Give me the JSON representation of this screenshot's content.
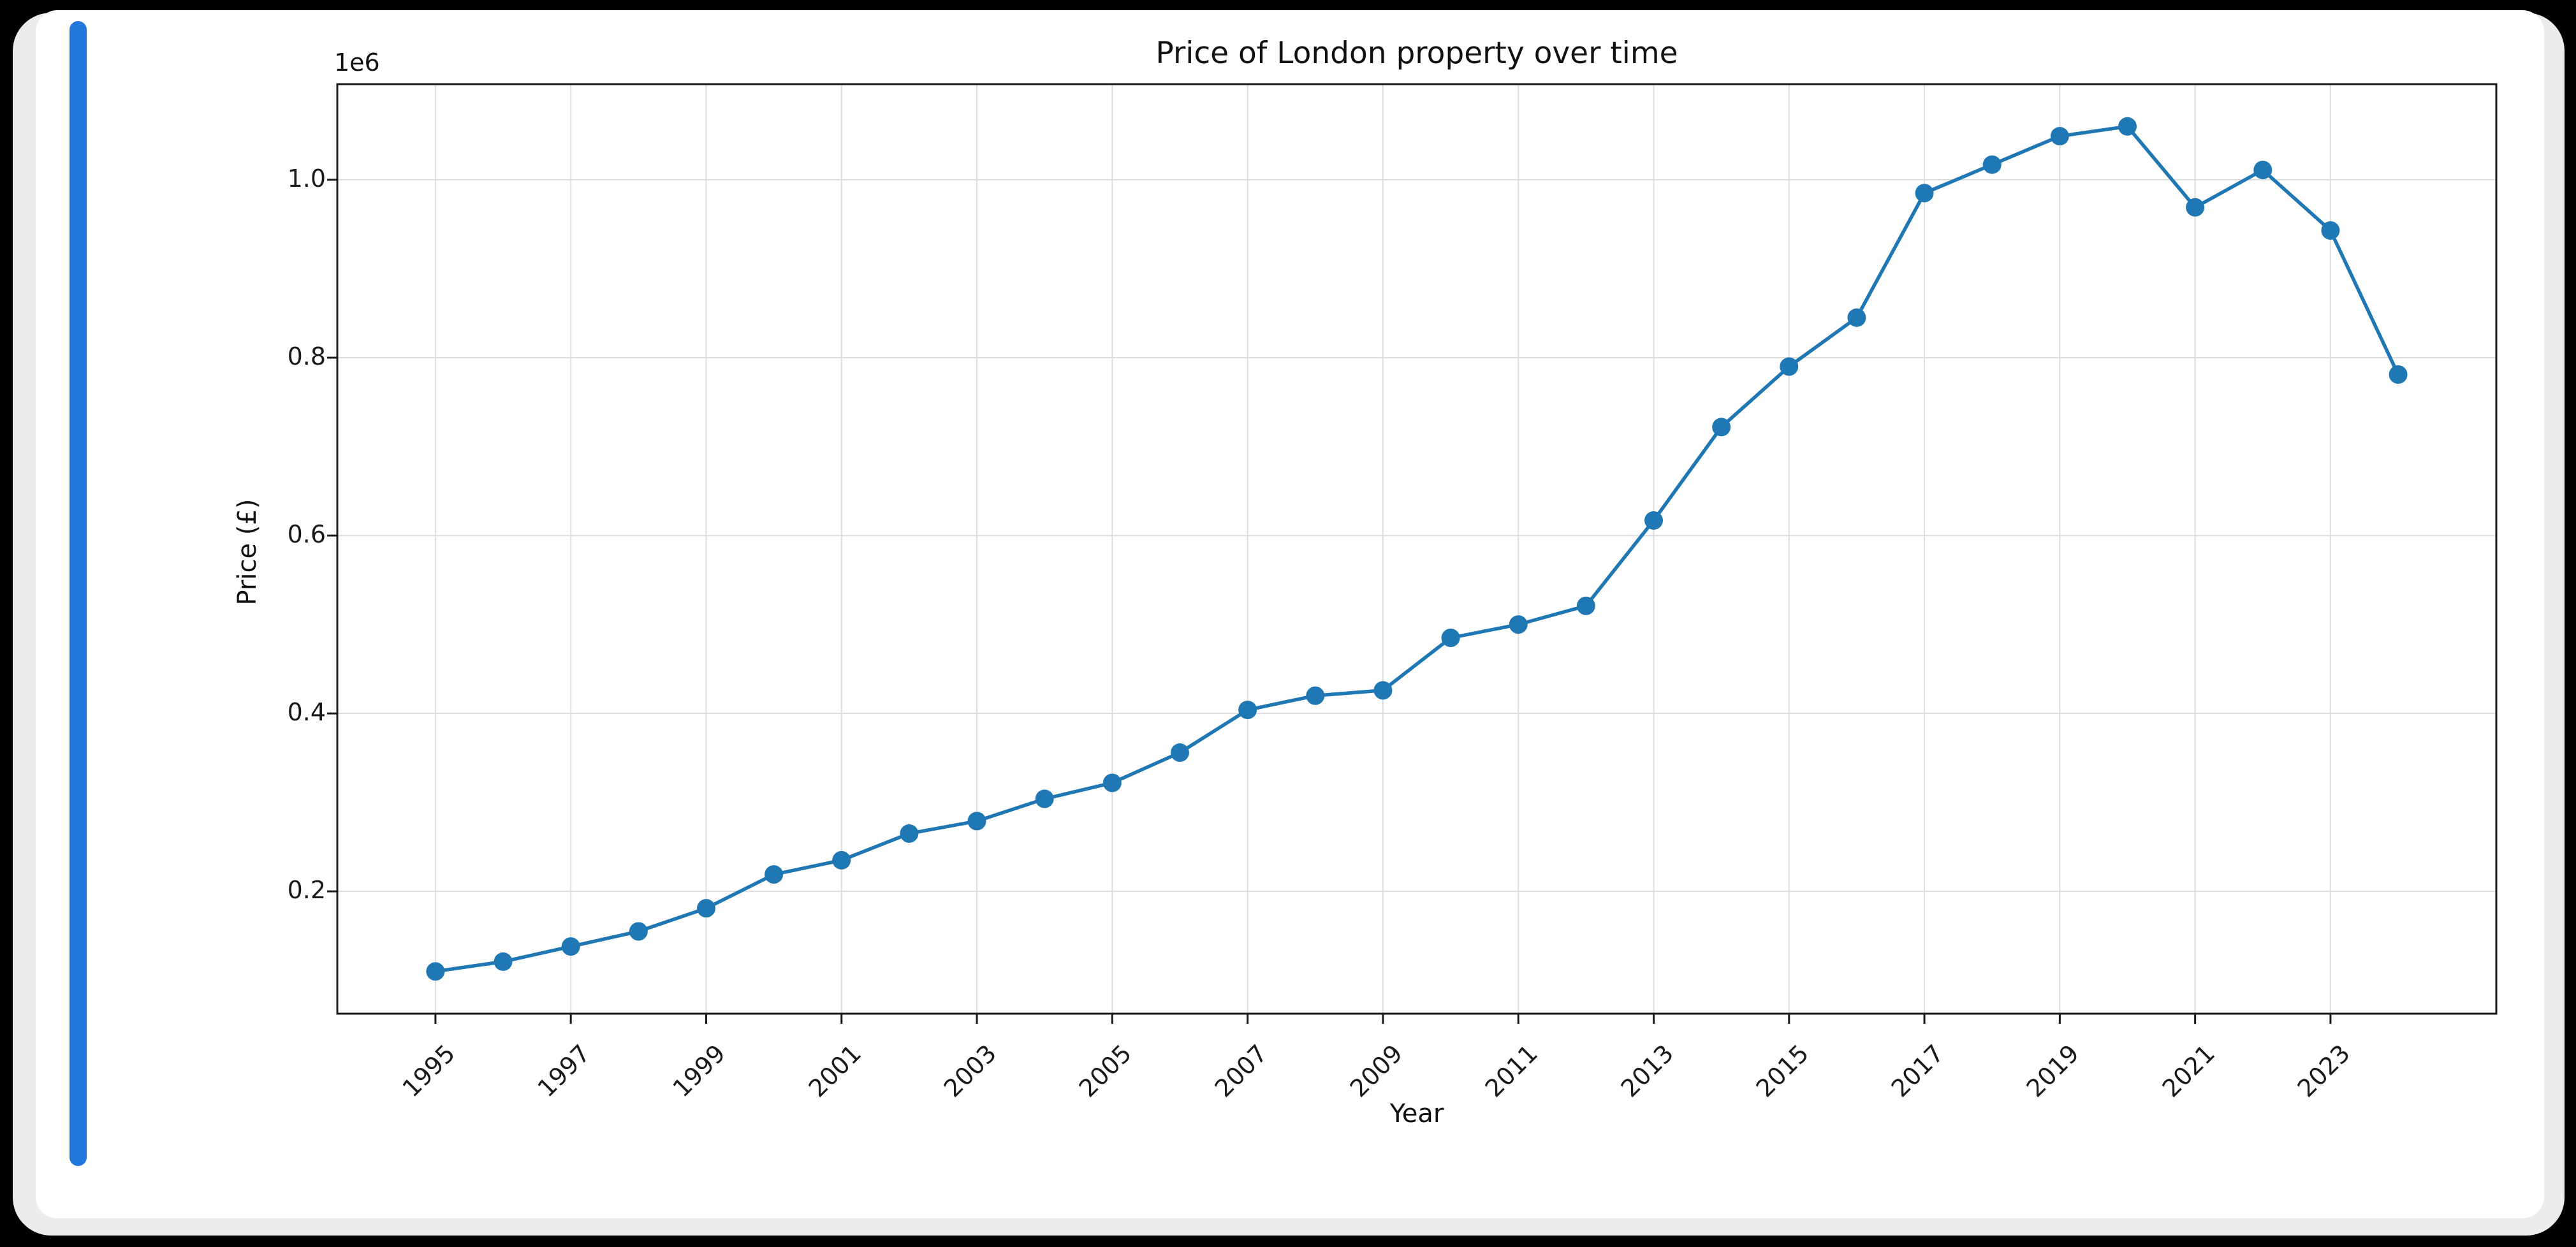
{
  "frame": {
    "background_color": "#000000",
    "sheet_color": "#ececec",
    "card_color": "#ffffff",
    "accent_bar_color": "#2277dd"
  },
  "chart_data": {
    "type": "line",
    "title": "Price of London property over time",
    "xlabel": "Year",
    "ylabel": "Price (£)",
    "y_offset_label": "1e6",
    "x": [
      1995,
      1996,
      1997,
      1998,
      1999,
      2000,
      2001,
      2002,
      2003,
      2004,
      2005,
      2006,
      2007,
      2008,
      2009,
      2010,
      2011,
      2012,
      2013,
      2014,
      2015,
      2016,
      2017,
      2018,
      2019,
      2020,
      2021,
      2022,
      2023,
      2024
    ],
    "values": [
      110000,
      121000,
      138000,
      155000,
      181000,
      219000,
      235000,
      265000,
      279000,
      304000,
      322000,
      356000,
      404000,
      420000,
      426000,
      485000,
      500000,
      521000,
      617000,
      722000,
      790000,
      845000,
      985000,
      1017000,
      1049000,
      1060000,
      969000,
      1011000,
      943000,
      781000
    ],
    "xticks": [
      1995,
      1997,
      1999,
      2001,
      2003,
      2005,
      2007,
      2009,
      2011,
      2013,
      2015,
      2017,
      2019,
      2021,
      2023
    ],
    "yticks": [
      200000,
      400000,
      600000,
      800000,
      1000000
    ],
    "ytick_labels": [
      "0.2",
      "0.4",
      "0.6",
      "0.8",
      "1.0"
    ],
    "xlim": [
      1993.55,
      2025.45
    ],
    "ylim": [
      62500,
      1107500
    ],
    "xtick_rotation_deg": 45,
    "grid": true,
    "legend": null,
    "line_color": "#1f77b4",
    "marker": "o",
    "marker_color": "#1f77b4",
    "grid_color": "#dedede",
    "spine_color": "#1a1a1a"
  }
}
